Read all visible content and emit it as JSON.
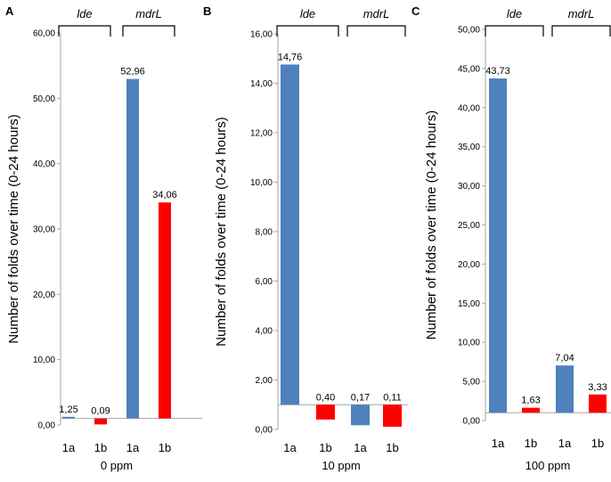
{
  "chart_data": [
    {
      "panel": "A",
      "type": "bar",
      "xlabel": "0 ppm",
      "ylabel": "Number of folds over time (0-24 hours)",
      "ylim": [
        0,
        60
      ],
      "ytick_step": 10,
      "ytick_labels": [
        "0,00",
        "10,00",
        "20,00",
        "30,00",
        "40,00",
        "50,00",
        "60,00"
      ],
      "baseline": 1,
      "categories": [
        "1a",
        "1b",
        "1a",
        "1b"
      ],
      "values": [
        1.25,
        0.09,
        52.96,
        34.06
      ],
      "data_labels": [
        "1,25",
        "0,09",
        "52,96",
        "34,06"
      ],
      "bar_colors": [
        "#4F81BD",
        "#FF0000",
        "#4F81BD",
        "#FF0000"
      ],
      "groups": [
        {
          "label": "lde",
          "members": [
            0,
            1
          ]
        },
        {
          "label": "mdrL",
          "members": [
            2,
            3
          ]
        }
      ]
    },
    {
      "panel": "B",
      "type": "bar",
      "xlabel": "10 ppm",
      "ylabel": "Number of folds over time (0-24 hours)",
      "ylim": [
        0,
        16
      ],
      "ytick_step": 2,
      "ytick_labels": [
        "0,00",
        "2,00",
        "4,00",
        "6,00",
        "8,00",
        "10,00",
        "12,00",
        "14,00",
        "16,00"
      ],
      "baseline": 1,
      "categories": [
        "1a",
        "1b",
        "1a",
        "1b"
      ],
      "values": [
        14.76,
        0.4,
        0.17,
        0.11
      ],
      "data_labels": [
        "14,76",
        "0,40",
        "0,17",
        "0,11"
      ],
      "bar_colors": [
        "#4F81BD",
        "#FF0000",
        "#4F81BD",
        "#FF0000"
      ],
      "groups": [
        {
          "label": "lde",
          "members": [
            0,
            1
          ]
        },
        {
          "label": "mdrL",
          "members": [
            2,
            3
          ]
        }
      ]
    },
    {
      "panel": "C",
      "type": "bar",
      "xlabel": "100 ppm",
      "ylabel": "Number of folds over time (0-24 hours)",
      "ylim": [
        0,
        50
      ],
      "ytick_step": 5,
      "ytick_labels": [
        "0,00",
        "5,00",
        "10,00",
        "15,00",
        "20,00",
        "25,00",
        "30,00",
        "35,00",
        "40,00",
        "45,00",
        "50,00"
      ],
      "baseline": 1,
      "categories": [
        "1a",
        "1b",
        "1a",
        "1b"
      ],
      "values": [
        43.73,
        1.63,
        7.04,
        3.33
      ],
      "data_labels": [
        "43,73",
        "1,63",
        "7,04",
        "3,33"
      ],
      "bar_colors": [
        "#4F81BD",
        "#FF0000",
        "#4F81BD",
        "#FF0000"
      ],
      "groups": [
        {
          "label": "lde",
          "members": [
            0,
            1
          ]
        },
        {
          "label": "mdrL",
          "members": [
            2,
            3
          ]
        }
      ]
    }
  ],
  "colors": {
    "axis": "#A6A6A6",
    "text": "#000000",
    "bracket": "#000000"
  }
}
